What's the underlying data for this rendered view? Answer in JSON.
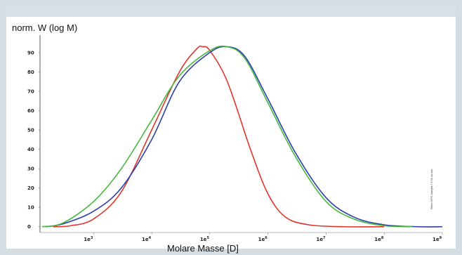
{
  "chart_data": {
    "type": "line",
    "title": "",
    "ylabel": "norm. W (log M)",
    "xlabel": "Molare Masse [D]",
    "xscale": "log",
    "xlim": [
      120,
      1000000000
    ],
    "ylim": [
      -3,
      99
    ],
    "yticks": [
      "0",
      "10",
      "20",
      "30",
      "40",
      "50",
      "60",
      "70",
      "80",
      "90"
    ],
    "xticks": [
      {
        "base": "1e",
        "exp": "3",
        "value": 1000
      },
      {
        "base": "1e",
        "exp": "4",
        "value": 10000
      },
      {
        "base": "1e",
        "exp": "5",
        "value": 100000
      },
      {
        "base": "1e",
        "exp": "6",
        "value": 1000000
      },
      {
        "base": "1e",
        "exp": "7",
        "value": 10000000
      },
      {
        "base": "1e",
        "exp": "8",
        "value": 100000000
      },
      {
        "base": "1e",
        "exp": "9",
        "value": 1000000000
      }
    ],
    "series": [
      {
        "color": "#e0352b",
        "points": [
          [
            200,
            0
          ],
          [
            400,
            0.5
          ],
          [
            1000,
            4
          ],
          [
            3000,
            18
          ],
          [
            10000,
            50
          ],
          [
            30000,
            80
          ],
          [
            60000,
            92
          ],
          [
            75000,
            93
          ],
          [
            100000,
            91
          ],
          [
            200000,
            75
          ],
          [
            500000,
            40
          ],
          [
            1000000,
            17
          ],
          [
            2000000,
            5
          ],
          [
            5000000,
            1
          ],
          [
            20000000,
            0
          ],
          [
            100000000,
            0
          ]
        ]
      },
      {
        "color": "#2d3fa8",
        "points": [
          [
            150,
            0
          ],
          [
            300,
            1.5
          ],
          [
            1000,
            8
          ],
          [
            3000,
            20
          ],
          [
            10000,
            45
          ],
          [
            30000,
            75
          ],
          [
            100000,
            90
          ],
          [
            200000,
            93
          ],
          [
            400000,
            88
          ],
          [
            1000000,
            66
          ],
          [
            3000000,
            38
          ],
          [
            10000000,
            15
          ],
          [
            30000000,
            5
          ],
          [
            100000000,
            1
          ],
          [
            400000000,
            0
          ],
          [
            1000000000,
            0
          ]
        ]
      },
      {
        "color": "#45b83e",
        "points": [
          [
            130,
            0
          ],
          [
            300,
            2
          ],
          [
            1000,
            13
          ],
          [
            3000,
            30
          ],
          [
            10000,
            55
          ],
          [
            30000,
            78
          ],
          [
            100000,
            91
          ],
          [
            200000,
            93
          ],
          [
            400000,
            87
          ],
          [
            1000000,
            64
          ],
          [
            3000000,
            36
          ],
          [
            10000000,
            13
          ],
          [
            30000000,
            4
          ],
          [
            100000000,
            0.5
          ],
          [
            300000000,
            0
          ]
        ]
      }
    ],
    "side_note": "Rheo-GPC-sample / V.01-xx.xxx",
    "grid": false
  }
}
